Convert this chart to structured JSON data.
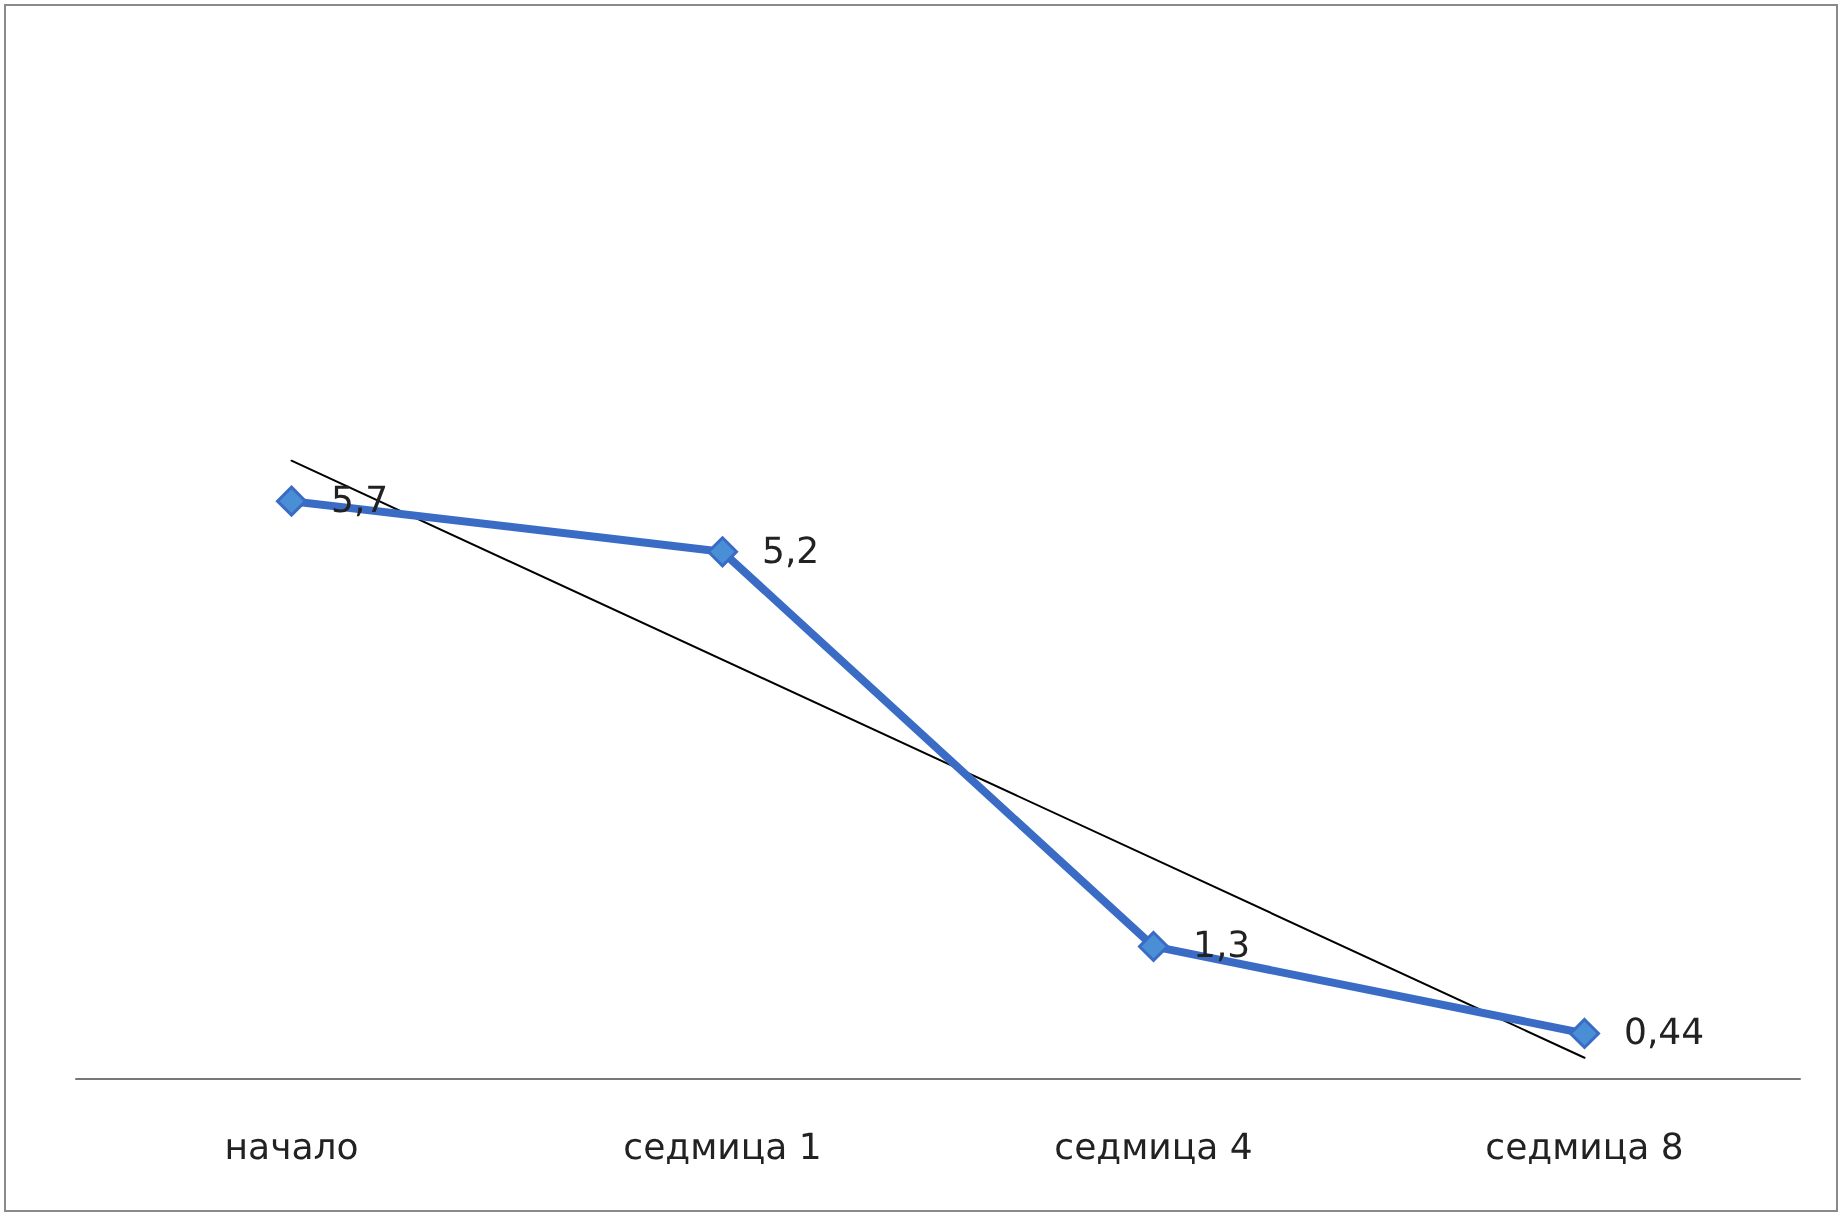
{
  "chart_data": {
    "type": "line",
    "categories": [
      "начало",
      "седмица 1",
      "седмица 4",
      "седмица 8"
    ],
    "marker": "diamond",
    "series": [
      {
        "color": "#3a6cc6",
        "values": [
          5.7,
          5.2,
          1.3,
          0.44
        ],
        "value_labels": [
          "5,7",
          "5,2",
          "1,3",
          "0,44"
        ]
      },
      {
        "type": "line",
        "color": "#000000",
        "x": [
          "начало",
          "седмица 8"
        ],
        "values": [
          6.1,
          0.2
        ],
        "marker": "none"
      }
    ]
  }
}
